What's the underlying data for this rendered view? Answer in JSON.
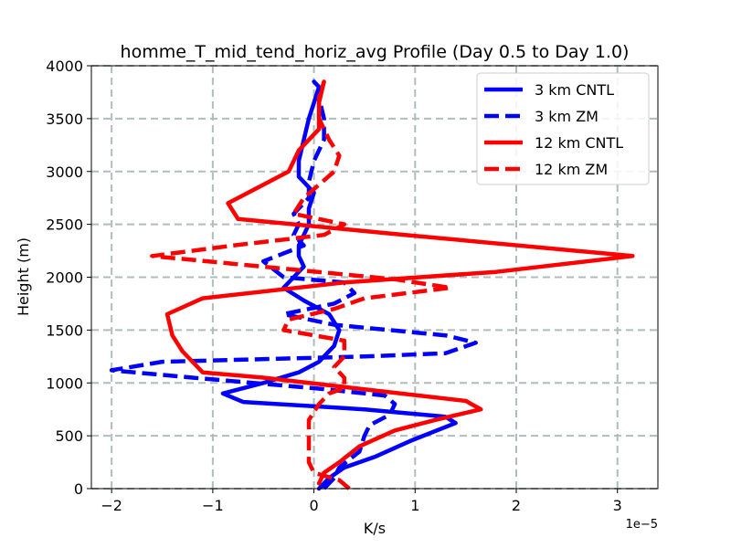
{
  "chart_data": {
    "type": "line",
    "title": "homme_T_mid_tend_horiz_avg Profile (Day 0.5 to Day 1.0)",
    "xlabel": "K/s",
    "ylabel": "Height (m)",
    "x_offset_label": "1e−5",
    "xlim": [
      -2.2,
      3.4
    ],
    "ylim": [
      0,
      4000
    ],
    "xticks": [
      -2,
      -1,
      0,
      1,
      2,
      3
    ],
    "xtick_labels": [
      "−2",
      "−1",
      "0",
      "1",
      "2",
      "3"
    ],
    "yticks": [
      0,
      500,
      1000,
      1500,
      2000,
      2500,
      3000,
      3500,
      4000
    ],
    "ytick_labels": [
      "0",
      "500",
      "1000",
      "1500",
      "2000",
      "2500",
      "3000",
      "3500",
      "4000"
    ],
    "grid": true,
    "legend_position": "top-right",
    "series": [
      {
        "name": "3 km CNTL",
        "color": "#0000ff",
        "style": "solid",
        "points": [
          [
            0.05,
            0
          ],
          [
            0.15,
            100
          ],
          [
            0.3,
            200
          ],
          [
            0.6,
            300
          ],
          [
            0.95,
            450
          ],
          [
            1.4,
            620
          ],
          [
            1.3,
            680
          ],
          [
            0.5,
            750
          ],
          [
            -0.7,
            820
          ],
          [
            -0.9,
            900
          ],
          [
            -0.5,
            1000
          ],
          [
            -0.15,
            1100
          ],
          [
            0.05,
            1200
          ],
          [
            0.2,
            1350
          ],
          [
            0.25,
            1500
          ],
          [
            0.15,
            1650
          ],
          [
            -0.1,
            1780
          ],
          [
            -0.3,
            1900
          ],
          [
            -0.2,
            2000
          ],
          [
            -0.1,
            2100
          ],
          [
            -0.15,
            2200
          ],
          [
            -0.15,
            2300
          ],
          [
            -0.1,
            2400
          ],
          [
            -0.05,
            2500
          ],
          [
            -0.05,
            2650
          ],
          [
            0,
            2800
          ],
          [
            -0.15,
            2950
          ],
          [
            -0.15,
            3100
          ],
          [
            -0.1,
            3300
          ],
          [
            -0.05,
            3500
          ],
          [
            0,
            3650
          ],
          [
            0.05,
            3800
          ],
          [
            0,
            3850
          ]
        ]
      },
      {
        "name": "3 km ZM",
        "color": "#0000ff",
        "style": "dashed",
        "points": [
          [
            0.1,
            0
          ],
          [
            0.2,
            100
          ],
          [
            0.25,
            200
          ],
          [
            0.45,
            350
          ],
          [
            0.5,
            500
          ],
          [
            0.55,
            600
          ],
          [
            0.75,
            700
          ],
          [
            0.8,
            800
          ],
          [
            0.7,
            880
          ],
          [
            0,
            950
          ],
          [
            -1.2,
            1050
          ],
          [
            -2.0,
            1120
          ],
          [
            -1.5,
            1200
          ],
          [
            0.5,
            1250
          ],
          [
            1.3,
            1280
          ],
          [
            1.6,
            1380
          ],
          [
            1.3,
            1450
          ],
          [
            0.2,
            1550
          ],
          [
            -0.3,
            1650
          ],
          [
            0.2,
            1750
          ],
          [
            0.4,
            1850
          ],
          [
            0.3,
            1950
          ],
          [
            -0.3,
            2000
          ],
          [
            -0.5,
            2150
          ],
          [
            -0.1,
            2300
          ],
          [
            -0.2,
            2400
          ],
          [
            -0.15,
            2500
          ],
          [
            -0.2,
            2600
          ],
          [
            -0.05,
            2750
          ],
          [
            -0.05,
            2900
          ],
          [
            0,
            3100
          ],
          [
            0.1,
            3300
          ],
          [
            0.1,
            3500
          ],
          [
            0.05,
            3700
          ]
        ]
      },
      {
        "name": "12 km CNTL",
        "color": "#ff0000",
        "style": "solid",
        "points": [
          [
            0.05,
            50
          ],
          [
            0.1,
            150
          ],
          [
            0.25,
            250
          ],
          [
            0.45,
            400
          ],
          [
            0.8,
            550
          ],
          [
            1.2,
            650
          ],
          [
            1.65,
            750
          ],
          [
            1.5,
            830
          ],
          [
            0.4,
            950
          ],
          [
            -0.5,
            1050
          ],
          [
            -1.1,
            1100
          ],
          [
            -1.3,
            1300
          ],
          [
            -1.4,
            1450
          ],
          [
            -1.45,
            1650
          ],
          [
            -1.1,
            1800
          ],
          [
            0.3,
            1950
          ],
          [
            1.8,
            2050
          ],
          [
            3.15,
            2200
          ],
          [
            0.9,
            2400
          ],
          [
            -0.75,
            2550
          ],
          [
            -0.85,
            2700
          ],
          [
            -0.55,
            2850
          ],
          [
            -0.25,
            3000
          ],
          [
            -0.15,
            3200
          ],
          [
            0.05,
            3400
          ],
          [
            0.05,
            3650
          ],
          [
            0.1,
            3850
          ]
        ]
      },
      {
        "name": "12 km ZM",
        "color": "#ff0000",
        "style": "dashed",
        "points": [
          [
            0.35,
            0
          ],
          [
            0.25,
            80
          ],
          [
            0.0,
            150
          ],
          [
            -0.05,
            250
          ],
          [
            -0.05,
            350
          ],
          [
            -0.05,
            500
          ],
          [
            -0.05,
            650
          ],
          [
            0.05,
            800
          ],
          [
            0.15,
            900
          ],
          [
            0.3,
            950
          ],
          [
            0.3,
            1050
          ],
          [
            0.2,
            1150
          ],
          [
            0.3,
            1250
          ],
          [
            0.3,
            1400
          ],
          [
            -0.3,
            1500
          ],
          [
            -0.25,
            1600
          ],
          [
            0.2,
            1700
          ],
          [
            0.5,
            1800
          ],
          [
            1.35,
            1900
          ],
          [
            0.8,
            1980
          ],
          [
            -1.6,
            2200
          ],
          [
            -0.8,
            2300
          ],
          [
            0.1,
            2400
          ],
          [
            0.3,
            2500
          ],
          [
            -0.2,
            2600
          ],
          [
            -0.1,
            2750
          ],
          [
            0.2,
            3000
          ],
          [
            0.25,
            3150
          ],
          [
            0.15,
            3300
          ],
          [
            0.05,
            3500
          ],
          [
            0.05,
            3700
          ],
          [
            0.1,
            3850
          ]
        ]
      }
    ]
  }
}
